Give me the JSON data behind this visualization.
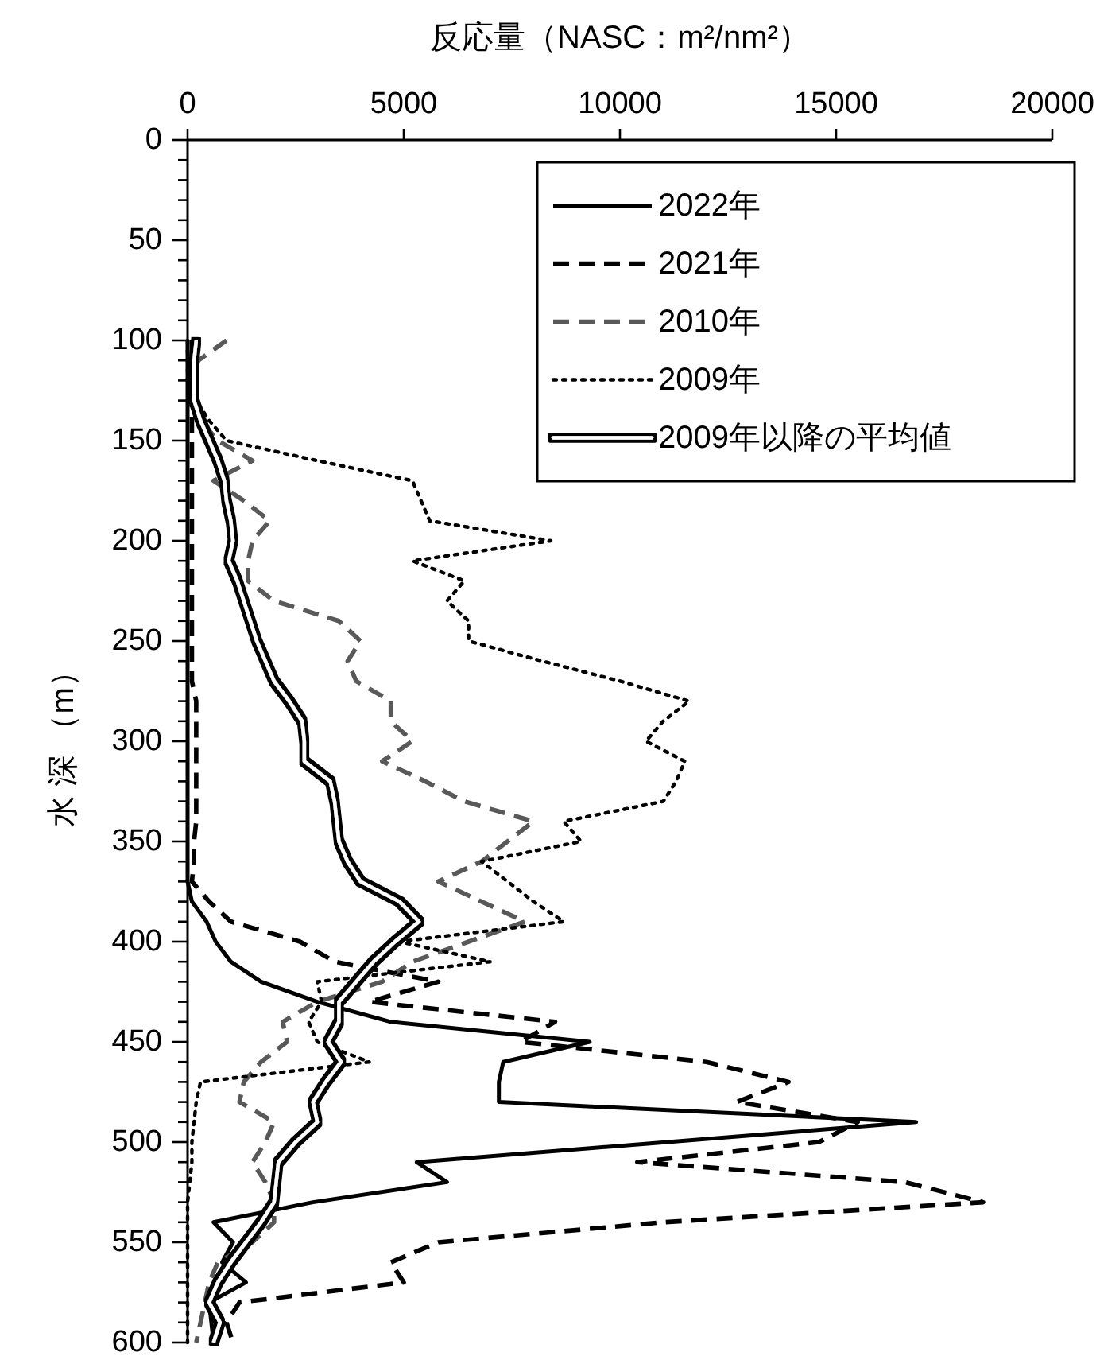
{
  "chart_data": {
    "type": "line",
    "orientation": "horizontal",
    "xlabel": "反応量（NASC：m²/nm²）",
    "ylabel": "水 深 （m）",
    "x": [
      100,
      110,
      120,
      130,
      140,
      150,
      160,
      170,
      180,
      190,
      200,
      210,
      220,
      230,
      240,
      250,
      260,
      270,
      280,
      290,
      300,
      310,
      320,
      330,
      340,
      350,
      360,
      370,
      380,
      390,
      400,
      410,
      420,
      430,
      440,
      450,
      460,
      470,
      480,
      490,
      500,
      510,
      520,
      530,
      540,
      550,
      560,
      570,
      580,
      590,
      600
    ],
    "xlim": [
      0,
      20000
    ],
    "xticks": [
      0,
      5000,
      10000,
      15000,
      20000
    ],
    "ylim": [
      600,
      0
    ],
    "yticks": [
      0,
      {
        "value": 10,
        "label": null
      },
      {
        "value": 20,
        "label": null
      },
      {
        "value": 30,
        "label": null
      },
      {
        "value": 40,
        "label": null
      },
      50,
      {
        "value": 60,
        "label": null
      },
      {
        "value": 70,
        "label": null
      },
      {
        "value": 80,
        "label": null
      },
      {
        "value": 90,
        "label": null
      },
      100,
      {
        "value": 110,
        "label": null
      },
      {
        "value": 120,
        "label": null
      },
      {
        "value": 130,
        "label": null
      },
      {
        "value": 140,
        "label": null
      },
      150,
      {
        "value": 160,
        "label": null
      },
      {
        "value": 170,
        "label": null
      },
      {
        "value": 180,
        "label": null
      },
      {
        "value": 190,
        "label": null
      },
      200,
      {
        "value": 210,
        "label": null
      },
      {
        "value": 220,
        "label": null
      },
      {
        "value": 230,
        "label": null
      },
      {
        "value": 240,
        "label": null
      },
      250,
      {
        "value": 260,
        "label": null
      },
      {
        "value": 270,
        "label": null
      },
      {
        "value": 280,
        "label": null
      },
      {
        "value": 290,
        "label": null
      },
      300,
      {
        "value": 310,
        "label": null
      },
      {
        "value": 320,
        "label": null
      },
      {
        "value": 330,
        "label": null
      },
      {
        "value": 340,
        "label": null
      },
      350,
      {
        "value": 360,
        "label": null
      },
      {
        "value": 370,
        "label": null
      },
      {
        "value": 380,
        "label": null
      },
      {
        "value": 390,
        "label": null
      },
      400,
      {
        "value": 410,
        "label": null
      },
      {
        "value": 420,
        "label": null
      },
      {
        "value": 430,
        "label": null
      },
      {
        "value": 440,
        "label": null
      },
      450,
      {
        "value": 460,
        "label": null
      },
      {
        "value": 470,
        "label": null
      },
      {
        "value": 480,
        "label": null
      },
      {
        "value": 490,
        "label": null
      },
      500,
      {
        "value": 510,
        "label": null
      },
      {
        "value": 520,
        "label": null
      },
      {
        "value": 530,
        "label": null
      },
      {
        "value": 540,
        "label": null
      },
      550,
      {
        "value": 560,
        "label": null
      },
      {
        "value": 570,
        "label": null
      },
      {
        "value": 580,
        "label": null
      },
      {
        "value": 590,
        "label": null
      },
      600
    ],
    "legend": "top right",
    "series": [
      {
        "name": "2022年",
        "color": "#000000",
        "line_style": "solid",
        "values": [
          0,
          0,
          0,
          0,
          0,
          0,
          0,
          0,
          0,
          0,
          0,
          0,
          0,
          0,
          0,
          0,
          0,
          0,
          0,
          0,
          0,
          0,
          0,
          0,
          0,
          0,
          0,
          0,
          100,
          440,
          650,
          1000,
          1700,
          3000,
          4700,
          9300,
          7300,
          7200,
          7200,
          16850,
          11100,
          5300,
          6000,
          2900,
          600,
          1050,
          800,
          1350,
          500,
          550,
          600
        ]
      },
      {
        "name": "2021年",
        "color": "#000000",
        "line_style": "dashed",
        "values": [
          100,
          100,
          100,
          100,
          100,
          100,
          100,
          100,
          100,
          100,
          100,
          100,
          100,
          100,
          100,
          100,
          100,
          100,
          200,
          200,
          200,
          200,
          200,
          200,
          200,
          150,
          150,
          100,
          500,
          1000,
          2600,
          3400,
          5800,
          4200,
          8500,
          7700,
          12000,
          13900,
          12700,
          15500,
          14600,
          10400,
          16600,
          18400,
          11000,
          5800,
          4700,
          5000,
          1200,
          900,
          1050
        ]
      },
      {
        "name": "2010年",
        "color": "#595959",
        "line_style": "dashed",
        "values": [
          900,
          250,
          100,
          100,
          300,
          700,
          1500,
          600,
          1300,
          1900,
          1500,
          1400,
          1400,
          2000,
          3500,
          4000,
          3700,
          3900,
          4700,
          4700,
          5200,
          4500,
          5500,
          6400,
          8000,
          7400,
          6800,
          5800,
          6800,
          7800,
          6500,
          5200,
          4500,
          3000,
          2200,
          2300,
          1700,
          1300,
          1200,
          2000,
          1800,
          1500,
          1800,
          2000,
          2000,
          1500,
          700,
          500,
          400,
          300,
          200
        ]
      },
      {
        "name": "2009年",
        "color": "#000000",
        "line_style": "dotted",
        "values": [
          0,
          0,
          0,
          200,
          500,
          900,
          3000,
          5200,
          5400,
          5600,
          8400,
          5200,
          6400,
          6000,
          6500,
          6500,
          8200,
          10000,
          11600,
          11000,
          10600,
          11500,
          11300,
          11000,
          8700,
          9100,
          6800,
          7400,
          8000,
          8700,
          4900,
          7000,
          3000,
          3100,
          2800,
          3000,
          4200,
          300,
          200,
          150,
          100,
          100,
          50,
          0,
          0,
          0,
          0,
          0,
          0,
          0,
          0
        ]
      },
      {
        "name": "2009年以降の平均値",
        "color": "#ffffff",
        "line_style": "solid",
        "values": [
          200,
          150,
          150,
          150,
          300,
          500,
          700,
          850,
          900,
          1000,
          1050,
          950,
          1150,
          1300,
          1450,
          1600,
          1800,
          2000,
          2350,
          2650,
          2700,
          2700,
          3300,
          3400,
          3450,
          3500,
          3700,
          4000,
          4900,
          5350,
          4800,
          4300,
          3900,
          3500,
          3500,
          3250,
          3550,
          3200,
          2900,
          3000,
          2500,
          2100,
          2050,
          2000,
          1700,
          1350,
          1000,
          700,
          500,
          750,
          600
        ]
      }
    ]
  }
}
